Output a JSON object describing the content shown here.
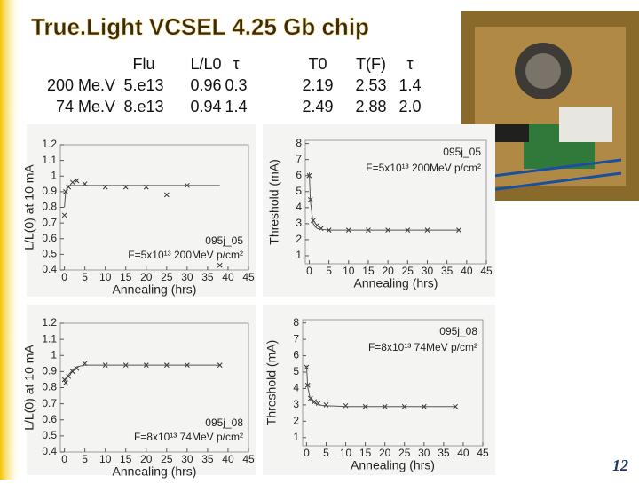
{
  "slide": {
    "title": "True.Light VCSEL 4.25 Gb chip",
    "page_number": "12",
    "table": {
      "header": [
        "Flu",
        "L/L0",
        "τ",
        "T0",
        "T(F)",
        "τ"
      ],
      "rows": [
        [
          "200 Me.V",
          "5.e13",
          "0.96",
          "0.3",
          "2.19",
          "2.53",
          "1.4"
        ],
        [
          "74 Me.V",
          "8.e13",
          "0.94",
          "1.4",
          "2.49",
          "2.88",
          "2.0"
        ]
      ]
    }
  },
  "chart_data": [
    {
      "type": "scatter",
      "x_label": "Annealing (hrs)",
      "y_label": "L/L(0) at 10 mA",
      "annotations": [
        "095j_05",
        "F=5x10¹³ 200MeV p/cm²"
      ],
      "x": [
        0,
        0.3,
        1,
        2,
        3,
        5,
        10,
        15,
        20,
        25,
        30,
        38
      ],
      "series": [
        {
          "color": "#333333",
          "values": [
            0.75,
            0.9,
            0.93,
            0.96,
            0.97,
            0.95,
            0.93,
            0.93,
            0.93,
            0.88,
            0.94,
            0.43
          ]
        },
        {
          "color": "#555555",
          "line": true,
          "values": [
            0.8,
            0.9,
            0.94,
            0.94,
            0.94,
            0.94,
            0.94,
            0.94,
            0.94,
            0.94,
            0.94,
            0.94
          ]
        }
      ],
      "xlim": [
        -1,
        45
      ],
      "xticks": [
        0,
        5,
        10,
        15,
        20,
        25,
        30,
        35,
        40,
        45
      ],
      "ylim": [
        0.4,
        1.2
      ],
      "yticks": [
        0.4,
        0.5,
        0.6,
        0.7,
        0.8,
        0.9,
        1,
        1.1,
        1.2
      ]
    },
    {
      "type": "scatter",
      "x_label": "Annealing (hrs)",
      "y_label": "Threshold (mA)",
      "annotations": [
        "095j_05",
        "F=5x10¹³ 200MeV p/cm²"
      ],
      "x": [
        0,
        0.3,
        1,
        2,
        3,
        5,
        10,
        15,
        20,
        25,
        30,
        38
      ],
      "series": [
        {
          "color": "#333333",
          "values": [
            6,
            4.5,
            3.2,
            2.9,
            2.7,
            2.6,
            2.6,
            2.6,
            2.6,
            2.6,
            2.6,
            2.6
          ]
        },
        {
          "color": "#555555",
          "line": true,
          "values": [
            6.2,
            4.4,
            3.0,
            2.7,
            2.65,
            2.6,
            2.6,
            2.6,
            2.6,
            2.6,
            2.6,
            2.6
          ]
        }
      ],
      "xlim": [
        -1,
        45
      ],
      "xticks": [
        0,
        5,
        10,
        15,
        20,
        25,
        30,
        35,
        40,
        45
      ],
      "ylim": [
        0.5,
        8.2
      ],
      "yticks": [
        1,
        2,
        3,
        4,
        5,
        6,
        7,
        8
      ]
    },
    {
      "type": "scatter",
      "x_label": "Annealing (hrs)",
      "y_label": "L/L(0) at 10 mA",
      "annotations": [
        "095j_08",
        "F=8x10¹³ 74MeV p/cm²"
      ],
      "x": [
        0,
        0.3,
        1,
        2,
        3,
        5,
        10,
        15,
        20,
        25,
        30,
        38
      ],
      "series": [
        {
          "color": "#333333",
          "values": [
            0.85,
            0.83,
            0.87,
            0.9,
            0.92,
            0.95,
            0.94,
            0.94,
            0.94,
            0.94,
            0.94,
            0.94
          ]
        },
        {
          "color": "#555555",
          "line": true,
          "values": [
            0.84,
            0.85,
            0.88,
            0.91,
            0.93,
            0.94,
            0.94,
            0.94,
            0.94,
            0.94,
            0.94,
            0.94
          ]
        }
      ],
      "xlim": [
        -1,
        45
      ],
      "xticks": [
        0,
        5,
        10,
        15,
        20,
        25,
        30,
        35,
        40,
        45
      ],
      "ylim": [
        0.4,
        1.2
      ],
      "yticks": [
        0.4,
        0.5,
        0.6,
        0.7,
        0.8,
        0.9,
        1,
        1.1,
        1.2
      ]
    },
    {
      "type": "scatter",
      "x_label": "Annealing (hrs)",
      "y_label": "Threshold (mA)",
      "annotations": [
        "095j_08",
        "F=8x10¹³ 74MeV p/cm²"
      ],
      "x": [
        0,
        0.3,
        1,
        2,
        3,
        5,
        10,
        15,
        20,
        25,
        30,
        38
      ],
      "series": [
        {
          "color": "#333333",
          "values": [
            5.3,
            4.2,
            3.4,
            3.2,
            3.1,
            3.0,
            2.95,
            2.9,
            2.9,
            2.9,
            2.9,
            2.9
          ]
        },
        {
          "color": "#555555",
          "line": true,
          "values": [
            5.4,
            4.1,
            3.3,
            3.1,
            3.0,
            2.95,
            2.9,
            2.9,
            2.9,
            2.9,
            2.9,
            2.9
          ]
        }
      ],
      "xlim": [
        -1,
        45
      ],
      "xticks": [
        0,
        5,
        10,
        15,
        20,
        25,
        30,
        35,
        40,
        45
      ],
      "ylim": [
        0.5,
        8.2
      ],
      "yticks": [
        1,
        2,
        3,
        4,
        5,
        6,
        7,
        8
      ]
    }
  ]
}
